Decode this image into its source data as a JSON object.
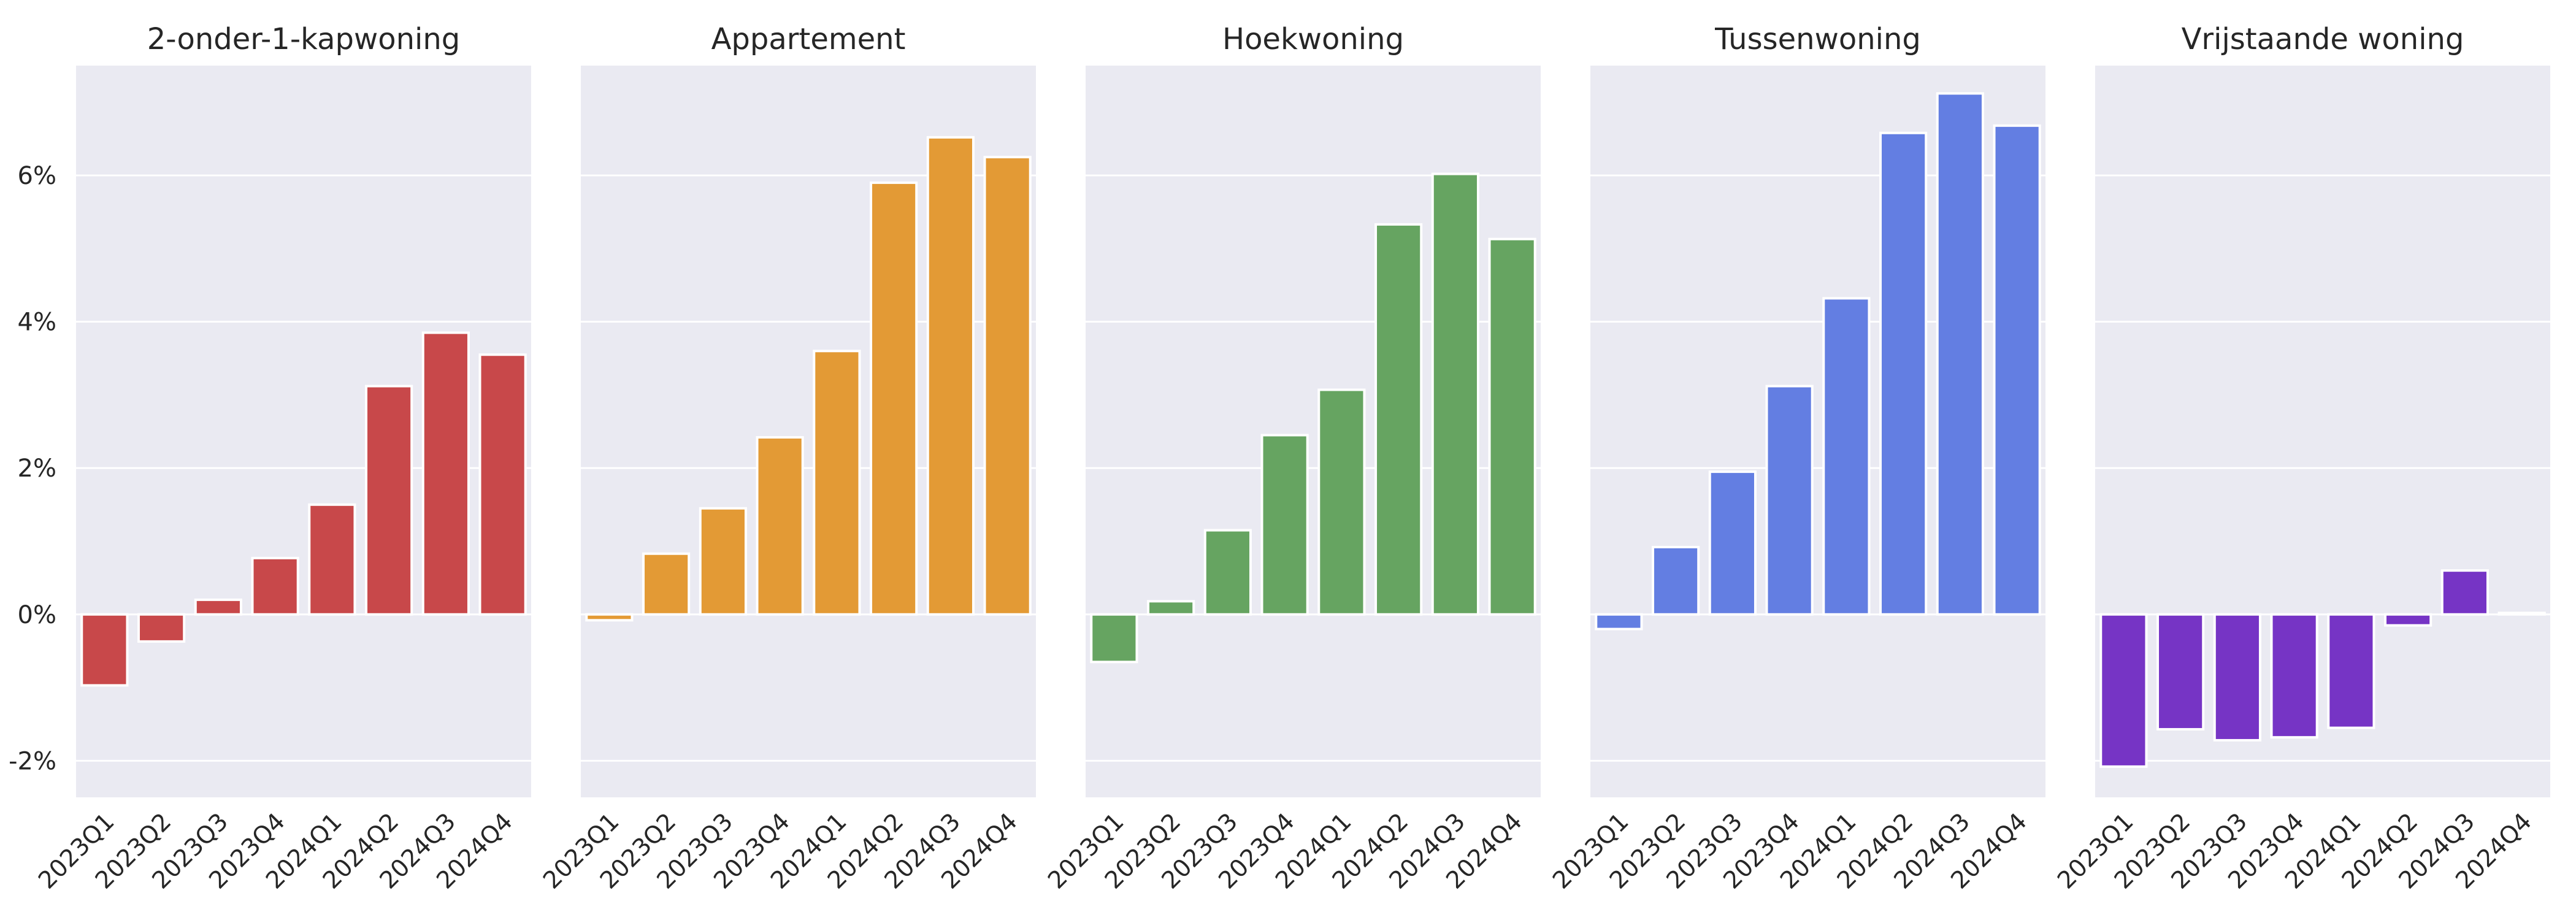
{
  "chart_data": {
    "type": "bar",
    "layout": "faceted, shared y-axis",
    "categories": [
      "2023Q1",
      "2023Q2",
      "2023Q3",
      "2023Q4",
      "2024Q1",
      "2024Q2",
      "2024Q3",
      "2024Q4"
    ],
    "ylim": [
      -2.5,
      7.5
    ],
    "yticks": [
      -2,
      0,
      2,
      4,
      6
    ],
    "ytick_labels": [
      "-2%",
      "0%",
      "2%",
      "4%",
      "6%"
    ],
    "grid": true,
    "panels": [
      {
        "title": "2-onder-1-kapwoning",
        "color": "#c8484a",
        "values": [
          -0.97,
          -0.37,
          0.2,
          0.77,
          1.5,
          3.12,
          3.85,
          3.55
        ]
      },
      {
        "title": "Appartement",
        "color": "#e39a35",
        "values": [
          -0.08,
          0.83,
          1.45,
          2.42,
          3.6,
          5.9,
          6.52,
          6.25
        ]
      },
      {
        "title": "Hoekwoning",
        "color": "#66a461",
        "values": [
          -0.65,
          0.18,
          1.15,
          2.45,
          3.07,
          5.33,
          6.02,
          5.13
        ]
      },
      {
        "title": "Tussenwoning",
        "color": "#637ee2",
        "values": [
          -0.2,
          0.92,
          1.95,
          3.12,
          4.32,
          6.58,
          7.12,
          6.68
        ]
      },
      {
        "title": "Vrijstaande woning",
        "color": "#7634c5",
        "values": [
          -2.08,
          -1.57,
          -1.72,
          -1.68,
          -1.55,
          -0.15,
          0.6,
          0.02
        ]
      }
    ]
  }
}
